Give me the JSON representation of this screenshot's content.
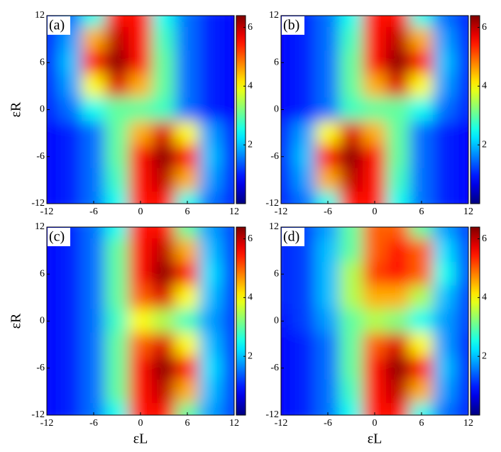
{
  "chart_data": [
    {
      "type": "heatmap",
      "panel_label": "(a)",
      "y_label": "εR",
      "colormap": "jet",
      "x": [
        -12,
        -9,
        -6,
        -3,
        0,
        3,
        6,
        9,
        12
      ],
      "y": [
        12,
        9,
        6,
        3,
        0,
        -3,
        -6,
        -9,
        -12
      ],
      "z": [
        [
          1,
          1.5,
          2.5,
          5.5,
          5.5,
          2.5,
          1.5,
          1,
          0.8
        ],
        [
          1,
          1.8,
          4.5,
          6,
          5.5,
          2.8,
          1.5,
          1,
          0.8
        ],
        [
          1,
          2,
          5.5,
          6.3,
          5.5,
          3,
          1.5,
          1,
          0.8
        ],
        [
          1,
          1.8,
          4,
          5.8,
          4.5,
          3,
          1.5,
          1,
          0.8
        ],
        [
          1,
          1.5,
          2.5,
          3,
          3,
          2.8,
          1.5,
          1,
          0.8
        ],
        [
          0.8,
          1,
          1.5,
          3,
          4.5,
          5.8,
          4,
          1.8,
          1
        ],
        [
          0.8,
          1,
          1.5,
          3,
          5.5,
          6.3,
          5.5,
          2,
          1
        ],
        [
          0.8,
          1,
          1.5,
          2.8,
          5.5,
          6,
          4.5,
          1.8,
          1
        ],
        [
          0.8,
          1,
          1.5,
          2.5,
          5.5,
          5.5,
          2.5,
          1.5,
          1
        ]
      ],
      "xlim": [
        -12,
        12
      ],
      "xticks": [
        -12,
        -6,
        0,
        6,
        12
      ],
      "ylim": [
        -12,
        12
      ],
      "yticks": [
        -12,
        -6,
        0,
        6,
        12
      ],
      "clim": [
        0,
        6.4
      ],
      "cticks": [
        2,
        4,
        6
      ]
    },
    {
      "type": "heatmap",
      "panel_label": "(b)",
      "colormap": "jet",
      "x": [
        -12,
        -9,
        -6,
        -3,
        0,
        3,
        6,
        9,
        12
      ],
      "y": [
        12,
        9,
        6,
        3,
        0,
        -3,
        -6,
        -9,
        -12
      ],
      "z": [
        [
          0.8,
          1,
          1.5,
          2.5,
          5.5,
          5.5,
          2.5,
          1.5,
          1
        ],
        [
          0.8,
          1,
          1.5,
          2.8,
          5.5,
          6,
          4.5,
          1.8,
          1
        ],
        [
          0.8,
          1,
          1.5,
          3,
          5.5,
          6.3,
          5.5,
          2,
          1
        ],
        [
          0.8,
          1,
          1.5,
          3,
          4.5,
          5.8,
          4,
          1.8,
          1
        ],
        [
          0.8,
          1,
          1.5,
          2.8,
          3,
          3,
          2.5,
          1.5,
          1
        ],
        [
          1,
          1.8,
          4,
          5.8,
          4.5,
          3,
          1.5,
          1,
          0.8
        ],
        [
          1,
          2,
          5.5,
          6.3,
          5.5,
          3,
          1.5,
          1,
          0.8
        ],
        [
          1,
          1.8,
          4.5,
          6,
          5.5,
          2.8,
          1.5,
          1,
          0.8
        ],
        [
          1,
          1.5,
          2.5,
          5.5,
          5.5,
          2.5,
          1.5,
          1,
          0.8
        ]
      ],
      "xlim": [
        -12,
        12
      ],
      "xticks": [
        -12,
        -6,
        0,
        6,
        12
      ],
      "ylim": [
        -12,
        12
      ],
      "yticks": [
        -12,
        -6,
        0,
        6,
        12
      ],
      "clim": [
        0,
        6.4
      ],
      "cticks": [
        2,
        4,
        6
      ]
    },
    {
      "type": "heatmap",
      "panel_label": "(c)",
      "y_label": "εR",
      "x_label": "εL",
      "colormap": "jet",
      "x": [
        -12,
        -9,
        -6,
        -3,
        0,
        3,
        6,
        9,
        12
      ],
      "y": [
        12,
        9,
        6,
        3,
        0,
        -3,
        -6,
        -9,
        -12
      ],
      "z": [
        [
          0.8,
          1,
          1.5,
          2.5,
          5.5,
          5.5,
          3,
          1.8,
          1.2
        ],
        [
          0.8,
          1,
          1.5,
          3,
          5.5,
          6,
          4.5,
          2,
          1.2
        ],
        [
          0.8,
          1,
          1.5,
          3,
          5.5,
          6.3,
          5.5,
          2.2,
          1.2
        ],
        [
          0.8,
          1,
          1.5,
          3,
          5,
          5.8,
          4,
          2,
          1.2
        ],
        [
          0.8,
          1,
          1.5,
          2.8,
          4,
          3.5,
          2.8,
          1.8,
          1.2
        ],
        [
          0.8,
          1,
          1.5,
          3,
          5,
          5.8,
          4,
          2,
          1.2
        ],
        [
          0.8,
          1,
          1.5,
          3,
          5.5,
          6.3,
          5.5,
          2.2,
          1.2
        ],
        [
          0.8,
          1,
          1.5,
          3,
          5.5,
          6,
          4.5,
          2,
          1.2
        ],
        [
          0.8,
          1,
          1.5,
          2.5,
          5.5,
          5.5,
          3,
          1.8,
          1.2
        ]
      ],
      "xlim": [
        -12,
        12
      ],
      "xticks": [
        -12,
        -6,
        0,
        6,
        12
      ],
      "ylim": [
        -12,
        12
      ],
      "yticks": [
        -12,
        -6,
        0,
        6,
        12
      ],
      "clim": [
        0,
        6.4
      ],
      "cticks": [
        2,
        4,
        6
      ]
    },
    {
      "type": "heatmap",
      "panel_label": "(d)",
      "x_label": "εL",
      "colormap": "jet",
      "x": [
        -12,
        -9,
        -6,
        -3,
        0,
        3,
        6,
        9,
        12
      ],
      "y": [
        12,
        9,
        6,
        3,
        0,
        -3,
        -6,
        -9,
        -12
      ],
      "z": [
        [
          1,
          1.2,
          1.8,
          3,
          5,
          5,
          3,
          1.8,
          1.2
        ],
        [
          1,
          1.2,
          2,
          3,
          5,
          5.5,
          5,
          2.2,
          1.3
        ],
        [
          1,
          1.2,
          2,
          3.5,
          5.2,
          5.5,
          5,
          2.5,
          1.3
        ],
        [
          1,
          1.2,
          2,
          3.5,
          4.5,
          4.5,
          3.5,
          2,
          1.2
        ],
        [
          0.9,
          1.2,
          1.8,
          3,
          3.5,
          3.2,
          2.5,
          1.8,
          1.2
        ],
        [
          0.8,
          1,
          1.5,
          3,
          5,
          5.8,
          4,
          1.8,
          1
        ],
        [
          0.8,
          1,
          1.5,
          3,
          5.5,
          6.3,
          5.5,
          2,
          1
        ],
        [
          0.8,
          1,
          1.5,
          2.8,
          5.5,
          6,
          4.5,
          1.8,
          1
        ],
        [
          0.8,
          1,
          1.5,
          2.5,
          5.5,
          5.5,
          2.5,
          1.5,
          1
        ]
      ],
      "xlim": [
        -12,
        12
      ],
      "xticks": [
        -12,
        -6,
        0,
        6,
        12
      ],
      "ylim": [
        -12,
        12
      ],
      "yticks": [
        -12,
        -6,
        0,
        6,
        12
      ],
      "clim": [
        0,
        6.4
      ],
      "cticks": [
        2,
        4,
        6
      ]
    }
  ]
}
